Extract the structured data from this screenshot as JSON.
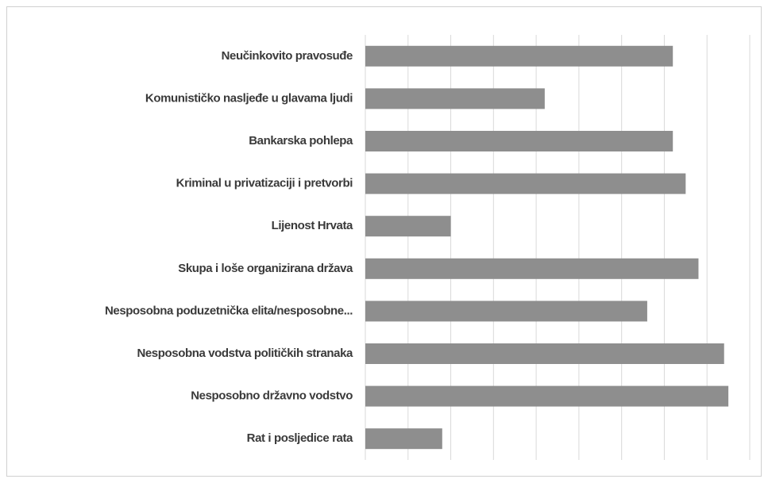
{
  "chart_data": {
    "type": "bar",
    "orientation": "horizontal",
    "categories": [
      "Neučinkovito pravosuđe",
      "Komunističko nasljeđe u glavama ljudi",
      "Bankarska pohlepa",
      "Kriminal u privatizaciji i pretvorbi",
      "Lijenost Hrvata",
      "Skupa i loše organizirana država",
      "Nesposobna poduzetnička elita/nesposobne...",
      "Nesposobna vodstva političkih stranaka",
      "Nesposobno državno vodstvo",
      "Rat i posljedice rata"
    ],
    "values": [
      7.2,
      4.2,
      7.2,
      7.5,
      2.0,
      7.8,
      6.6,
      8.4,
      8.5,
      1.8
    ],
    "color": "#8e8e8e",
    "xlim": [
      0,
      9
    ],
    "xticks": [
      0,
      1,
      2,
      3,
      4,
      5,
      6,
      7,
      8,
      9
    ],
    "grid": true
  }
}
